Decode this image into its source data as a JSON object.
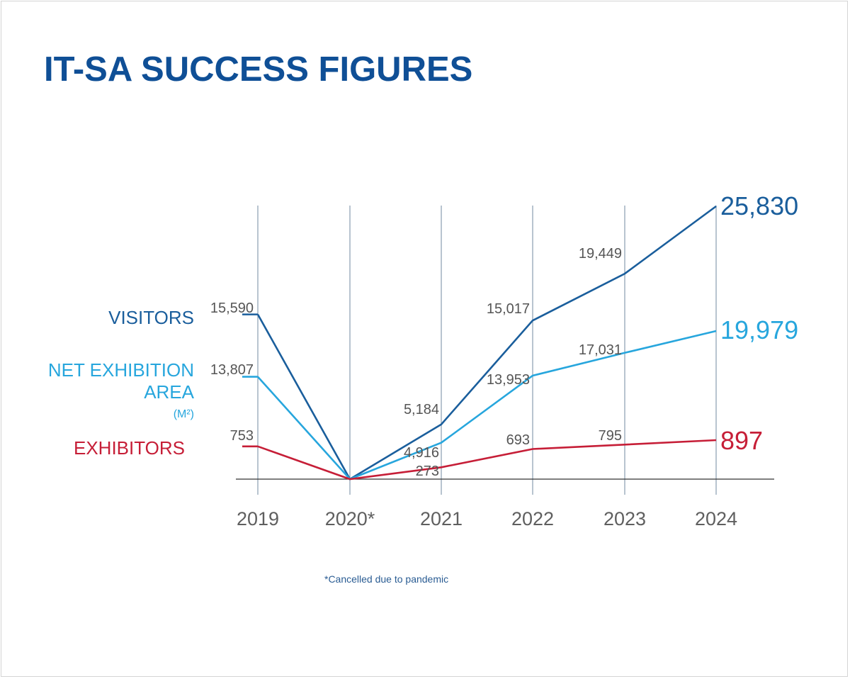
{
  "title": "IT-SA SUCCESS FIGURES",
  "footnote": "*Cancelled due to pandemic",
  "colors": {
    "title": "#0f4f96",
    "visitors": "#1a5e9c",
    "net_exhibition_area": "#27a6dd",
    "exhibitors": "#c61e37",
    "footnote": "#2a5c93",
    "gridline": "#4d6d88",
    "value_label": "#555555",
    "axis_label": "#5f5f5f",
    "baseline": "#333333"
  },
  "chart_data": {
    "type": "line",
    "title": "IT-SA SUCCESS FIGURES",
    "x": [
      "2019",
      "2020*",
      "2021",
      "2022",
      "2023",
      "2024"
    ],
    "grid": true,
    "series": [
      {
        "key": "visitors",
        "name": "VISITORS",
        "values": [
          15590,
          null,
          5184,
          15017,
          19449,
          25830
        ],
        "labels": [
          "15,590",
          null,
          "5,184",
          "15,017",
          "19,449",
          "25,830"
        ]
      },
      {
        "key": "net_exhibition_area",
        "name": "NET EXHIBITION AREA",
        "unit": "(M²)",
        "values": [
          13807,
          null,
          4916,
          13953,
          17031,
          19979
        ],
        "labels": [
          "13,807",
          null,
          "4,916",
          "13,953",
          "17,031",
          "19,979"
        ]
      },
      {
        "key": "exhibitors",
        "name": "EXHIBITORS",
        "values": [
          753,
          null,
          273,
          693,
          795,
          897
        ],
        "labels": [
          "753",
          null,
          "273",
          "693",
          "795",
          "897"
        ]
      }
    ]
  }
}
